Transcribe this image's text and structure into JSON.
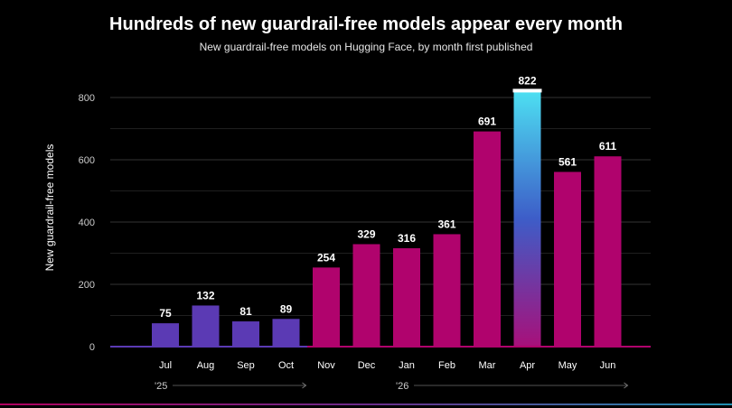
{
  "chart_data": {
    "type": "bar",
    "title": "Hundreds of new guardrail-free models appear every month",
    "subtitle": "New guardrail-free models on Hugging Face, by month first published",
    "ylabel": "New guardrail-free models",
    "xlabel": "",
    "categories": [
      "Jul",
      "Aug",
      "Sep",
      "Oct",
      "Nov",
      "Dec",
      "Jan",
      "Feb",
      "Mar",
      "Apr",
      "May",
      "Jun"
    ],
    "values": [
      75,
      132,
      81,
      89,
      254,
      329,
      316,
      361,
      691,
      822,
      561,
      611
    ],
    "data_labels": [
      "75",
      "132",
      "81",
      "89",
      "254",
      "329",
      "316",
      "361",
      "691",
      "822",
      "561",
      "611"
    ],
    "ylim": [
      0,
      880
    ],
    "yticks": [
      0,
      200,
      400,
      600,
      800
    ],
    "ytick_labels": [
      "0",
      "200",
      "400",
      "600",
      "800"
    ],
    "year_labels": [
      {
        "label": "'25",
        "from": "Jul",
        "to": "Oct"
      },
      {
        "label": "'26",
        "from": "Jan",
        "to": "Jun"
      }
    ],
    "grid": true,
    "highlight_category": "Apr",
    "colors": {
      "purple": "#5b3ab4",
      "magenta": "#b0036d",
      "highlight_top": "#4de0f2",
      "highlight_mid": "#3d5dc8",
      "highlight_bottom": "#a8107a",
      "grid": "#333333",
      "axis": "#5b3ab4",
      "text": "#ffffff",
      "muted": "#cccccc"
    },
    "purple_categories": [
      "Jul",
      "Aug",
      "Sep",
      "Oct"
    ]
  }
}
